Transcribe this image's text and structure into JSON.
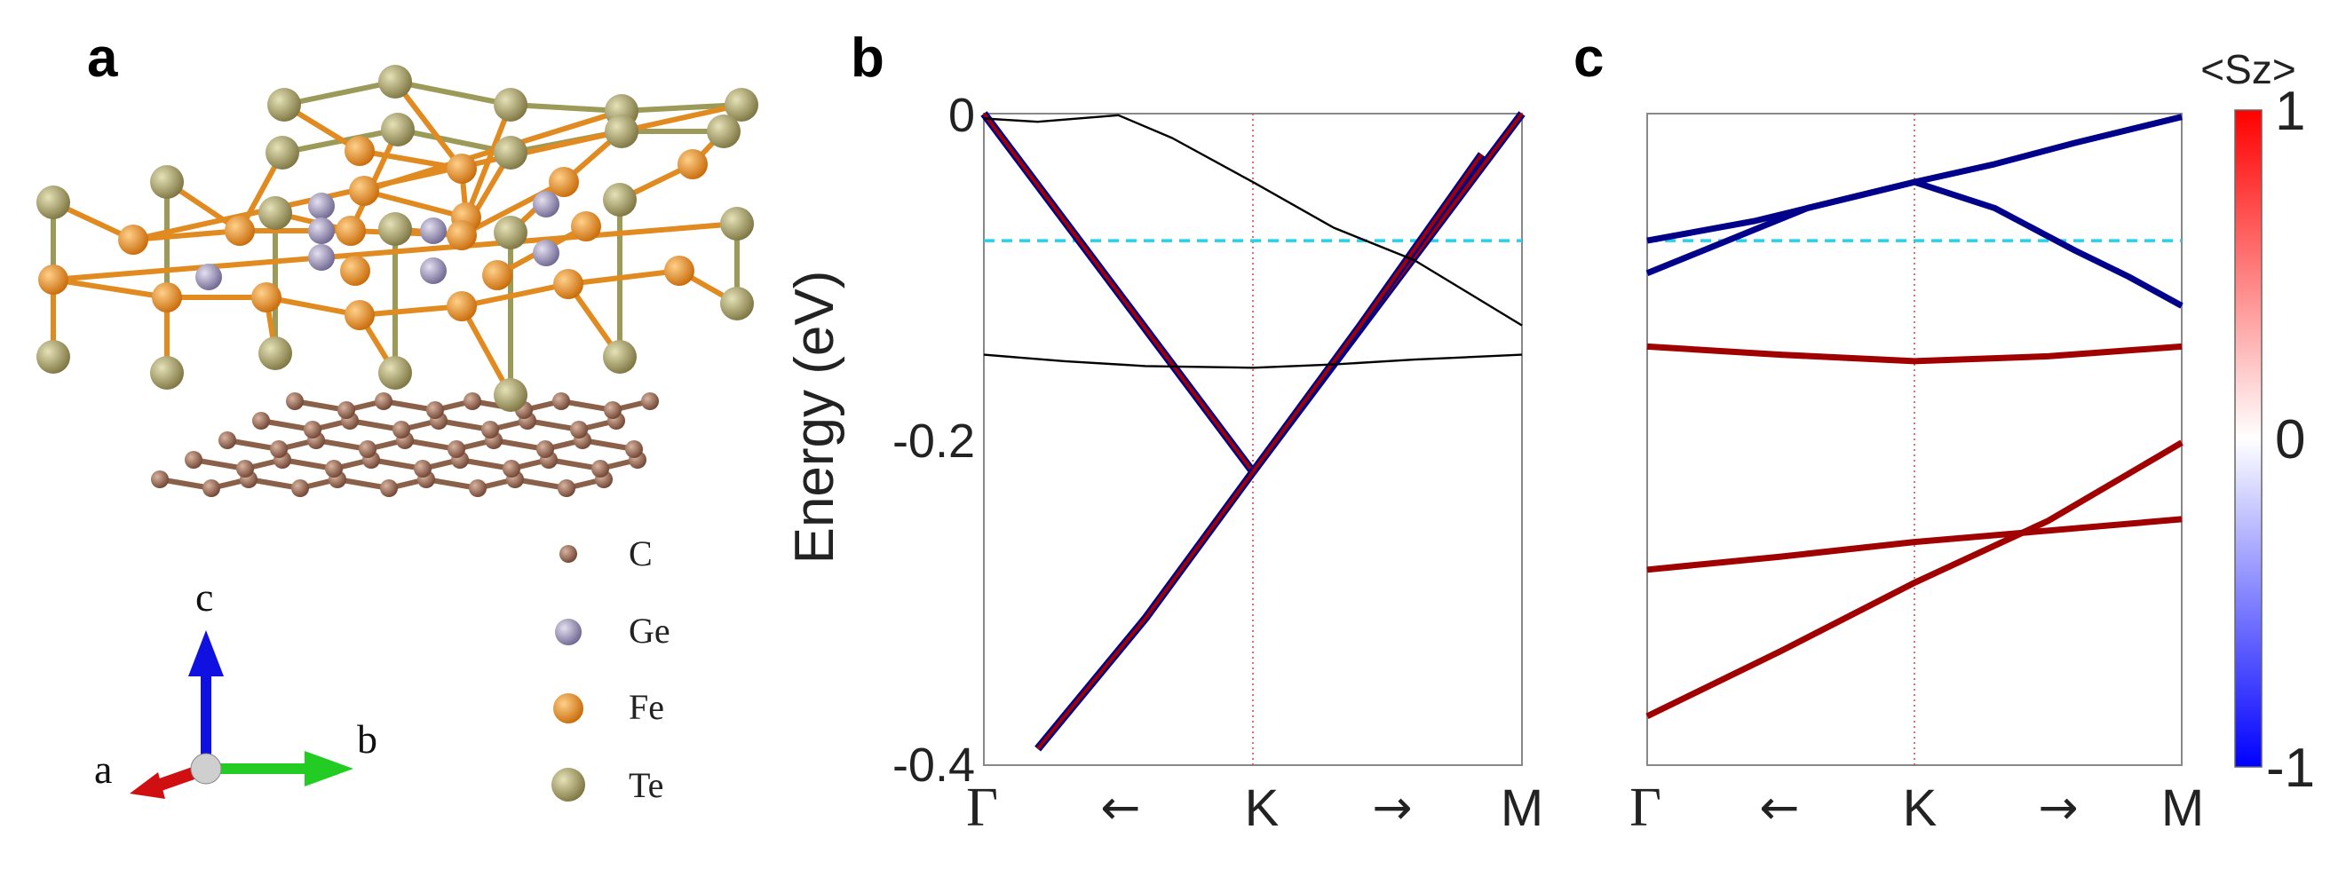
{
  "panels": {
    "a": "a",
    "b": "b",
    "c": "c"
  },
  "structure": {
    "legend": [
      {
        "element": "C",
        "color": "#8a5a44"
      },
      {
        "element": "Ge",
        "color": "#8f88ad"
      },
      {
        "element": "Fe",
        "color": "#e58a1f"
      },
      {
        "element": "Te",
        "color": "#a8a060"
      }
    ],
    "axes": {
      "a": "a",
      "b": "b",
      "c": "c"
    }
  },
  "kpath": {
    "start": "Γ",
    "mid": "K",
    "end": "M",
    "arrow_left": "←",
    "arrow_right": "→"
  },
  "colorbar": {
    "title": "<Sz>",
    "ticks": [
      "1",
      "0",
      "-1"
    ],
    "max_color": "#ff0000",
    "mid_color": "#ffffff",
    "min_color": "#0000ff"
  },
  "colors": {
    "spin_up": "#a00000",
    "spin_down": "#00008b",
    "fermi_line": "#22d3ee",
    "k_line": "#d45050"
  },
  "chart_data": [
    {
      "type": "line",
      "panel": "b",
      "title": "",
      "xlabel": "",
      "ylabel": "Energy (eV)",
      "ylim": [
        -0.4,
        0
      ],
      "xlim": [
        0,
        2
      ],
      "yticks": [
        "0",
        "-0.2",
        "-0.4"
      ],
      "xticks": [
        "Γ",
        "K",
        "M"
      ],
      "hline_dashed": -0.078,
      "series": [
        {
          "style": "sz-projected",
          "x": [
            0,
            0.5,
            1,
            1.5,
            2
          ],
          "y": [
            0.0,
            -0.11,
            -0.22,
            -0.11,
            0.0
          ]
        },
        {
          "style": "sz-projected",
          "x": [
            0.2,
            0.6,
            1,
            1.4,
            1.85
          ],
          "y": [
            -0.39,
            -0.31,
            -0.22,
            -0.13,
            -0.025
          ]
        },
        {
          "style": "black",
          "x": [
            0,
            0.2,
            0.5,
            0.7,
            1,
            1.3,
            1.6,
            2
          ],
          "y": [
            -0.003,
            -0.005,
            -0.001,
            -0.015,
            -0.042,
            -0.07,
            -0.09,
            -0.13
          ]
        },
        {
          "style": "black",
          "x": [
            0,
            0.3,
            0.6,
            1,
            1.3,
            1.6,
            2
          ],
          "y": [
            -0.148,
            -0.152,
            -0.155,
            -0.156,
            -0.154,
            -0.151,
            -0.148
          ]
        }
      ]
    },
    {
      "type": "line",
      "panel": "c",
      "title": "",
      "xlabel": "",
      "ylabel": "",
      "ylim": [
        -0.4,
        0
      ],
      "xlim": [
        0,
        2
      ],
      "yticks": [],
      "xticks": [
        "Γ",
        "K",
        "M"
      ],
      "hline_dashed": -0.078,
      "series": [
        {
          "sz": -1,
          "x": [
            0,
            0.4,
            0.8,
            1,
            1.3,
            1.6,
            2
          ],
          "y": [
            -0.078,
            -0.066,
            -0.05,
            -0.042,
            -0.031,
            -0.018,
            -0.002
          ]
        },
        {
          "sz": -1,
          "x": [
            0,
            0.3,
            0.6,
            1,
            1.3,
            1.6,
            1.8,
            2
          ],
          "y": [
            -0.098,
            -0.078,
            -0.058,
            -0.042,
            -0.058,
            -0.084,
            -0.1,
            -0.118
          ]
        },
        {
          "sz": 1,
          "x": [
            0,
            0.5,
            1,
            1.5,
            2
          ],
          "y": [
            -0.143,
            -0.148,
            -0.152,
            -0.149,
            -0.143
          ]
        },
        {
          "sz": 1,
          "x": [
            0,
            0.5,
            1,
            1.5,
            2
          ],
          "y": [
            -0.28,
            -0.272,
            -0.263,
            -0.256,
            -0.249
          ]
        },
        {
          "sz": 1,
          "x": [
            0,
            0.5,
            1,
            1.5,
            2
          ],
          "y": [
            -0.37,
            -0.33,
            -0.288,
            -0.25,
            -0.202
          ]
        }
      ]
    }
  ]
}
